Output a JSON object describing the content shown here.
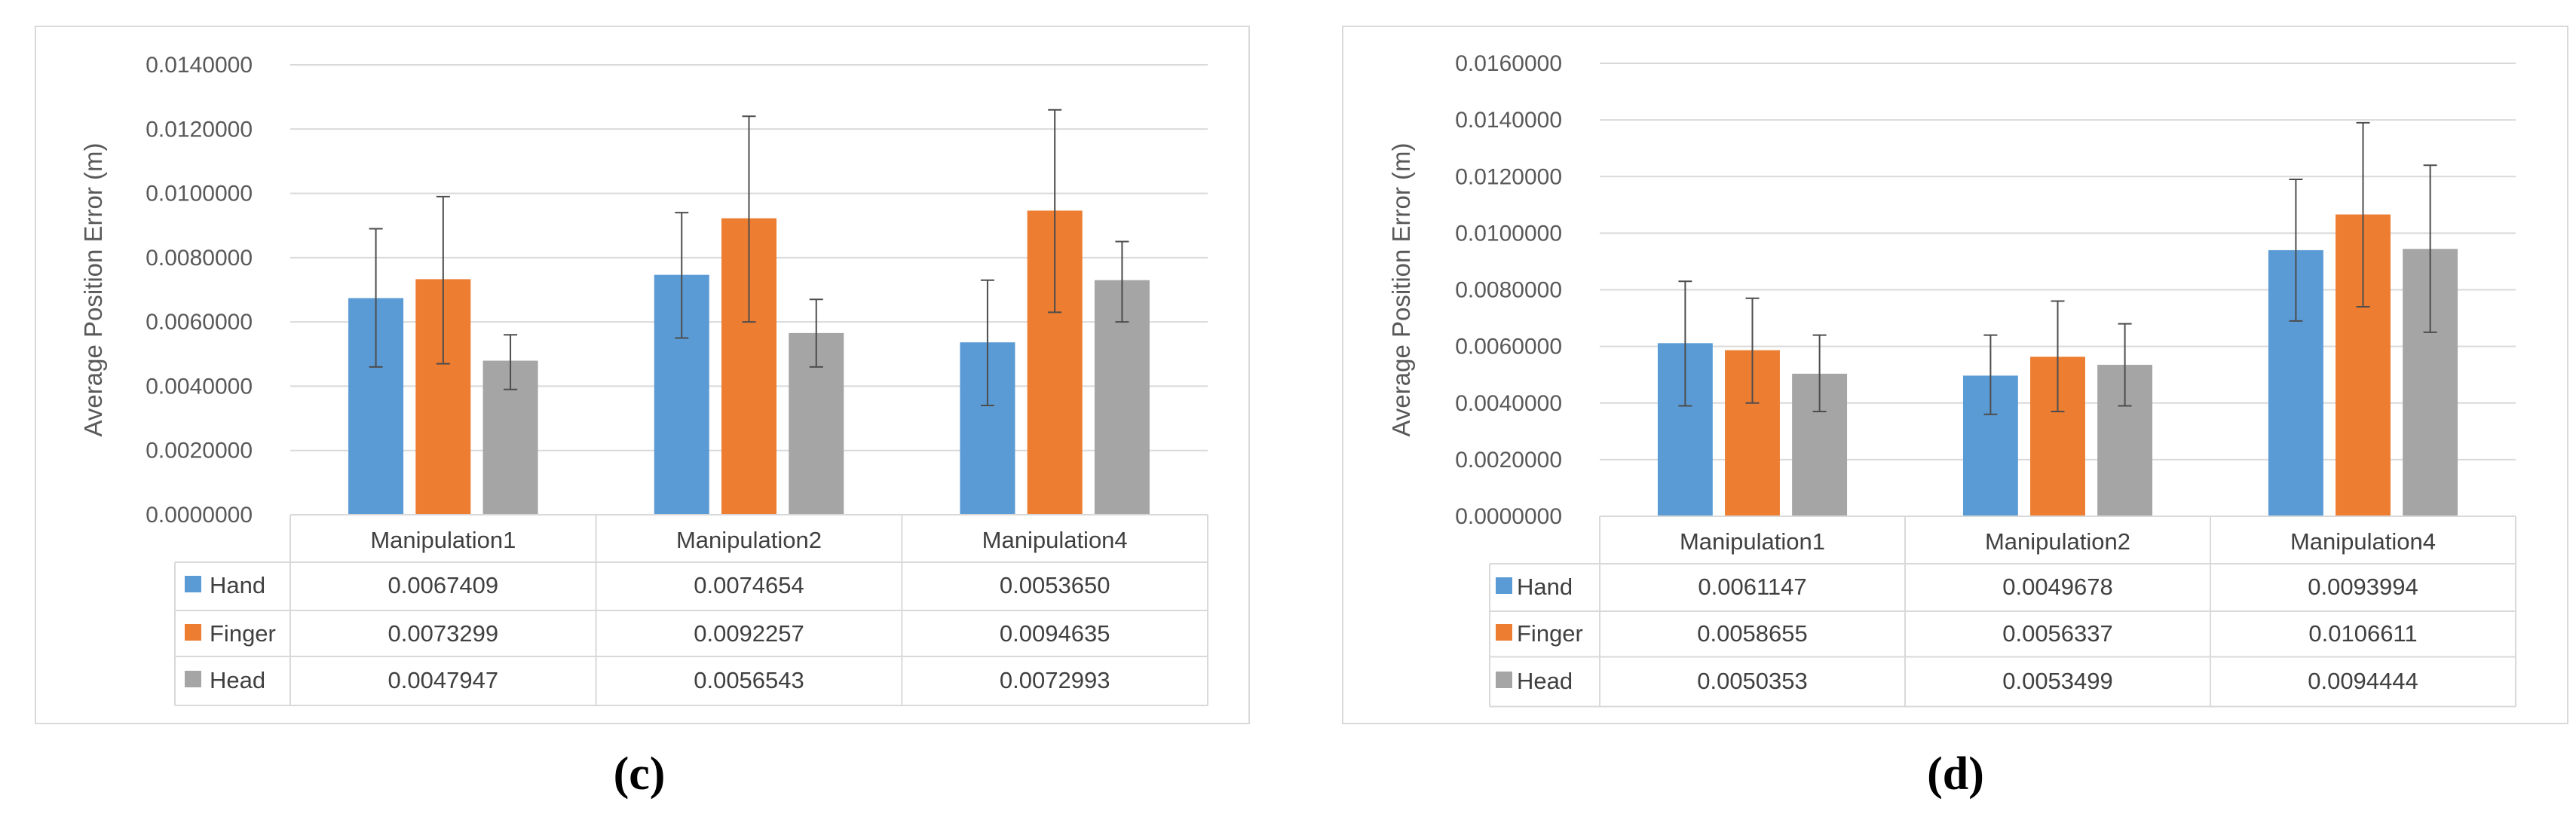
{
  "chart_data": [
    {
      "type": "bar",
      "panel_label": "(c)",
      "panel_letter": "c",
      "title": "",
      "xlabel": "",
      "ylabel": "Average Position Error (m)",
      "ylim": [
        0,
        0.014
      ],
      "yticks": [
        "0.0000000",
        "0.0020000",
        "0.0040000",
        "0.0060000",
        "0.0080000",
        "0.0100000",
        "0.0120000",
        "0.0140000"
      ],
      "categories": [
        "Manipulation1",
        "Manipulation2",
        "Manipulation4"
      ],
      "series": [
        {
          "name": "Hand",
          "color": "#5b9bd5",
          "values": [
            0.0067409,
            0.0074654,
            0.005365
          ],
          "labels": [
            "0.0067409",
            "0.0074654",
            "0.0053650"
          ],
          "err_low": [
            0.0046,
            0.0055,
            0.0034
          ],
          "err_high": [
            0.0089,
            0.0094,
            0.0073
          ]
        },
        {
          "name": "Finger",
          "color": "#ed7d31",
          "values": [
            0.0073299,
            0.0092257,
            0.0094635
          ],
          "labels": [
            "0.0073299",
            "0.0092257",
            "0.0094635"
          ],
          "err_low": [
            0.0047,
            0.006,
            0.0063
          ],
          "err_high": [
            0.0099,
            0.0124,
            0.0126
          ]
        },
        {
          "name": "Head",
          "color": "#a5a5a5",
          "values": [
            0.0047947,
            0.0056543,
            0.0072993
          ],
          "labels": [
            "0.0047947",
            "0.0056543",
            "0.0072993"
          ],
          "err_low": [
            0.0039,
            0.0046,
            0.006
          ],
          "err_high": [
            0.0056,
            0.0067,
            0.0085
          ]
        }
      ],
      "grid": true,
      "legend": "data-table"
    },
    {
      "type": "bar",
      "panel_label": "(d)",
      "panel_letter": "d",
      "title": "",
      "xlabel": "",
      "ylabel": "Average Position Error (m)",
      "ylim": [
        0,
        0.016
      ],
      "yticks": [
        "0.0000000",
        "0.0020000",
        "0.0040000",
        "0.0060000",
        "0.0080000",
        "0.0100000",
        "0.0120000",
        "0.0140000",
        "0.0160000"
      ],
      "categories": [
        "Manipulation1",
        "Manipulation2",
        "Manipulation4"
      ],
      "series": [
        {
          "name": "Hand",
          "color": "#5b9bd5",
          "values": [
            0.0061147,
            0.0049678,
            0.0093994
          ],
          "labels": [
            "0.0061147",
            "0.0049678",
            "0.0093994"
          ],
          "err_low": [
            0.0039,
            0.0036,
            0.0069
          ],
          "err_high": [
            0.0083,
            0.0064,
            0.0119
          ]
        },
        {
          "name": "Finger",
          "color": "#ed7d31",
          "values": [
            0.0058655,
            0.0056337,
            0.0106611
          ],
          "labels": [
            "0.0058655",
            "0.0056337",
            "0.0106611"
          ],
          "err_low": [
            0.004,
            0.0037,
            0.0074
          ],
          "err_high": [
            0.0077,
            0.0076,
            0.0139
          ]
        },
        {
          "name": "Head",
          "color": "#a5a5a5",
          "values": [
            0.0050353,
            0.0053499,
            0.0094444
          ],
          "labels": [
            "0.0050353",
            "0.0053499",
            "0.0094444"
          ],
          "err_low": [
            0.0037,
            0.0039,
            0.0065
          ],
          "err_high": [
            0.0064,
            0.0068,
            0.0124
          ]
        }
      ],
      "grid": true,
      "legend": "data-table"
    }
  ]
}
